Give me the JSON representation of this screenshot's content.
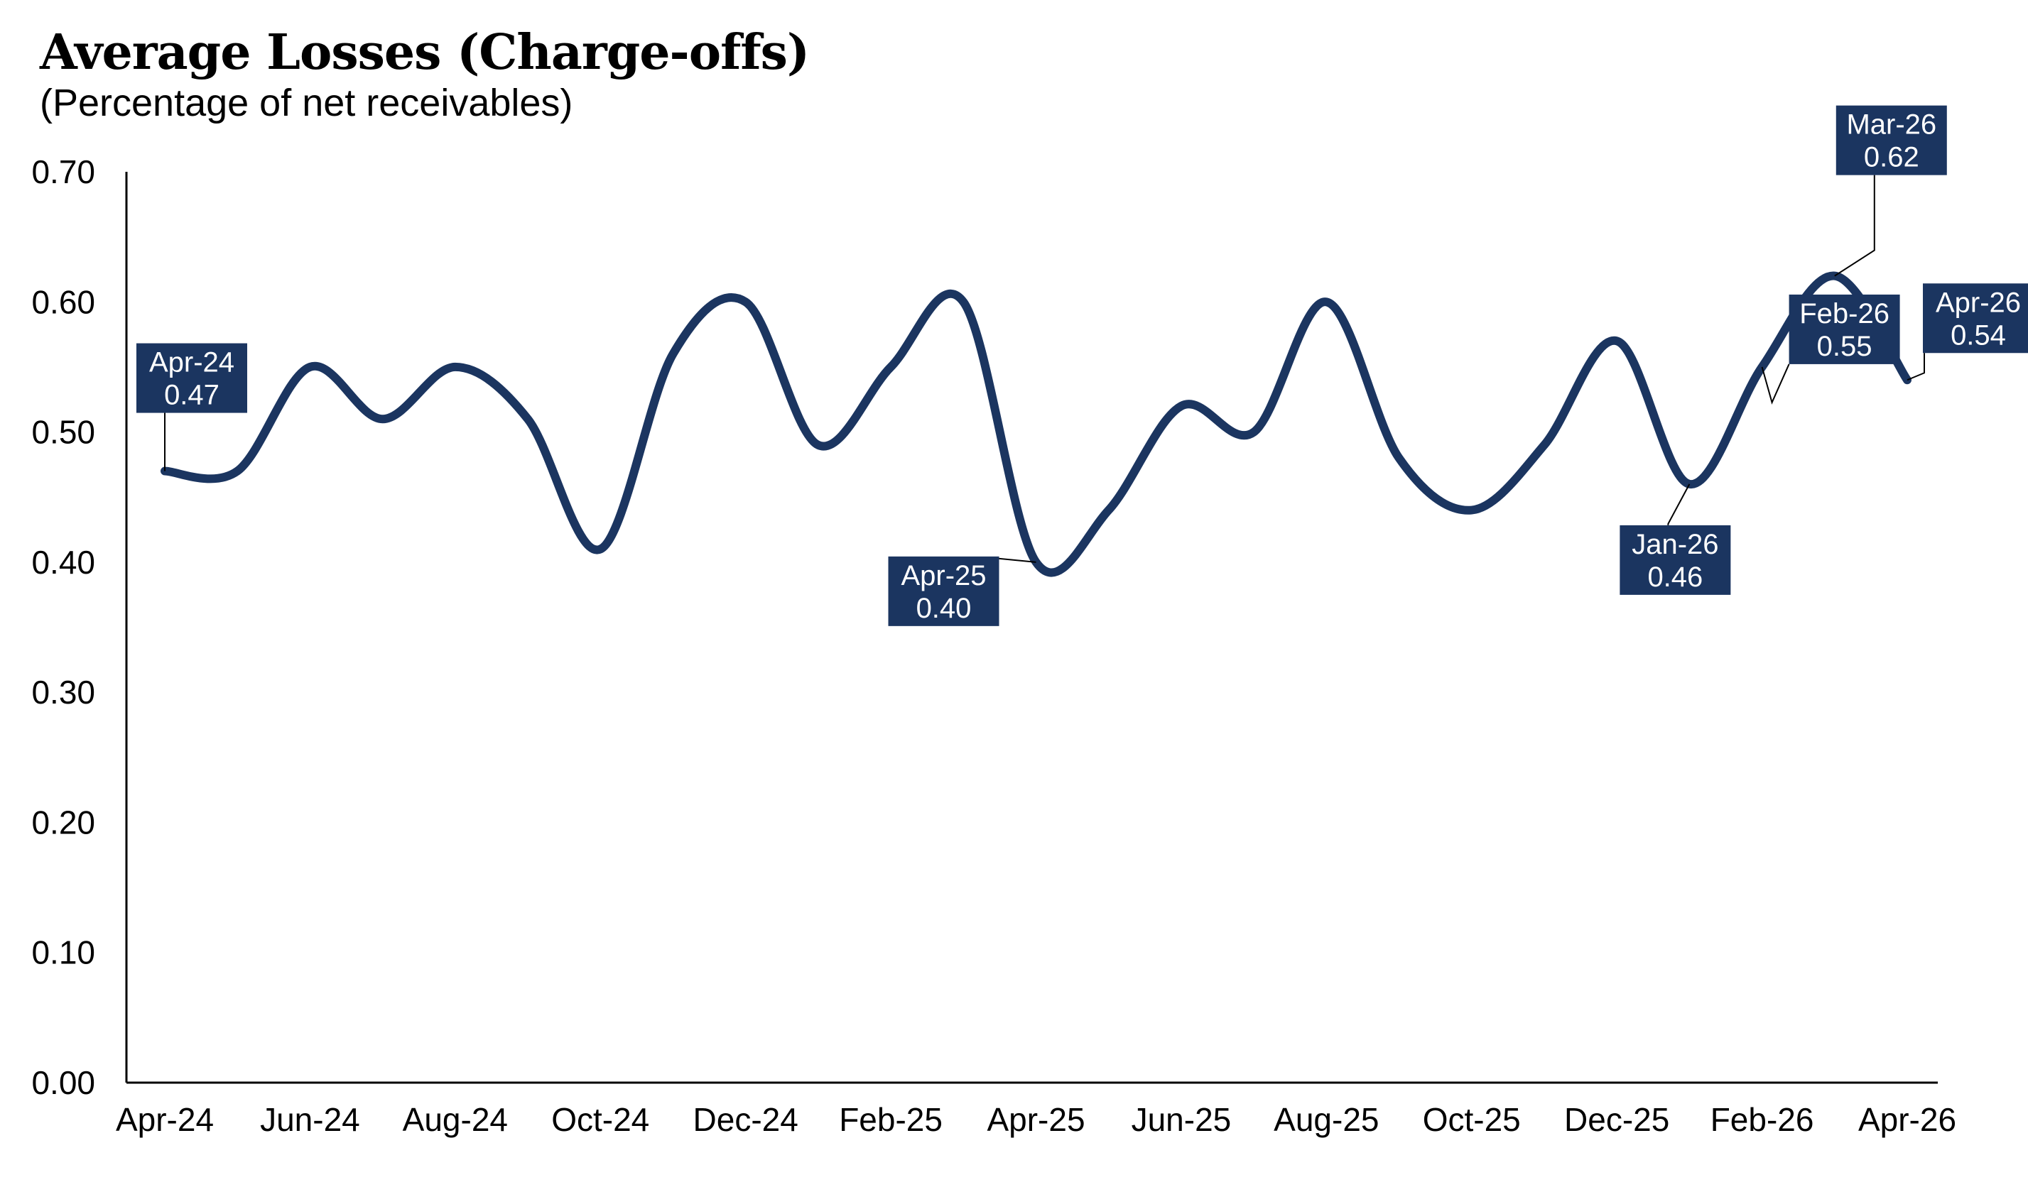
{
  "chart_data": {
    "type": "line",
    "title": "Average Losses (Charge-offs)",
    "subtitle": "(Percentage of net receivables)",
    "xlabel": "",
    "ylabel": "",
    "ylim": [
      0,
      0.7
    ],
    "y_ticks": [
      "0.00",
      "0.10",
      "0.20",
      "0.30",
      "0.40",
      "0.50",
      "0.60",
      "0.70"
    ],
    "x_tick_labels": [
      "Apr-24",
      "Jun-24",
      "Aug-24",
      "Oct-24",
      "Dec-24",
      "Feb-25",
      "Apr-25",
      "Jun-25",
      "Aug-25",
      "Oct-25",
      "Dec-25",
      "Feb-26",
      "Apr-26"
    ],
    "grid": false,
    "line_color": "#1b3560",
    "callout_color": "#1b3560",
    "series": [
      {
        "x": [
          "Apr-24",
          "May-24",
          "Jun-24",
          "Jul-24",
          "Aug-24",
          "Sep-24",
          "Oct-24",
          "Nov-24",
          "Dec-24",
          "Jan-25",
          "Feb-25",
          "Mar-25",
          "Apr-25",
          "May-25",
          "Jun-25",
          "Jul-25",
          "Aug-25",
          "Sep-25",
          "Oct-25",
          "Nov-25",
          "Dec-25",
          "Jan-26",
          "Feb-26",
          "Mar-26",
          "Apr-26"
        ],
        "values": [
          0.47,
          0.47,
          0.55,
          0.51,
          0.55,
          0.51,
          0.41,
          0.56,
          0.6,
          0.49,
          0.55,
          0.6,
          0.4,
          0.44,
          0.52,
          0.5,
          0.6,
          0.48,
          0.44,
          0.49,
          0.57,
          0.46,
          0.55,
          0.62,
          0.54
        ]
      }
    ],
    "annotations": [
      {
        "index": 0,
        "month": "Apr-24",
        "value": "0.47"
      },
      {
        "index": 12,
        "month": "Apr-25",
        "value": "0.40"
      },
      {
        "index": 21,
        "month": "Jan-26",
        "value": "0.46"
      },
      {
        "index": 22,
        "month": "Feb-26",
        "value": "0.55"
      },
      {
        "index": 23,
        "month": "Mar-26",
        "value": "0.62"
      },
      {
        "index": 24,
        "month": "Apr-26",
        "value": "0.54"
      }
    ]
  }
}
